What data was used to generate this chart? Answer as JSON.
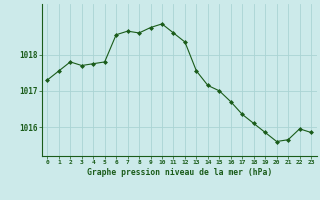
{
  "x": [
    0,
    1,
    2,
    3,
    4,
    5,
    6,
    7,
    8,
    9,
    10,
    11,
    12,
    13,
    14,
    15,
    16,
    17,
    18,
    19,
    20,
    21,
    22,
    23
  ],
  "y": [
    1017.3,
    1017.55,
    1017.8,
    1017.7,
    1017.75,
    1017.8,
    1018.55,
    1018.65,
    1018.6,
    1018.75,
    1018.85,
    1018.6,
    1018.35,
    1017.55,
    1017.15,
    1017.0,
    1016.7,
    1016.35,
    1016.1,
    1015.85,
    1015.6,
    1015.65,
    1015.95,
    1015.85
  ],
  "line_color": "#1a5c1a",
  "marker_color": "#1a5c1a",
  "bg_color": "#cceaea",
  "grid_color": "#aad4d4",
  "axes_color": "#1a5c1a",
  "title": "Graphe pression niveau de la mer (hPa)",
  "ylabel_ticks": [
    1016,
    1017,
    1018
  ],
  "ylim": [
    1015.2,
    1019.4
  ],
  "xlim": [
    -0.5,
    23.5
  ]
}
